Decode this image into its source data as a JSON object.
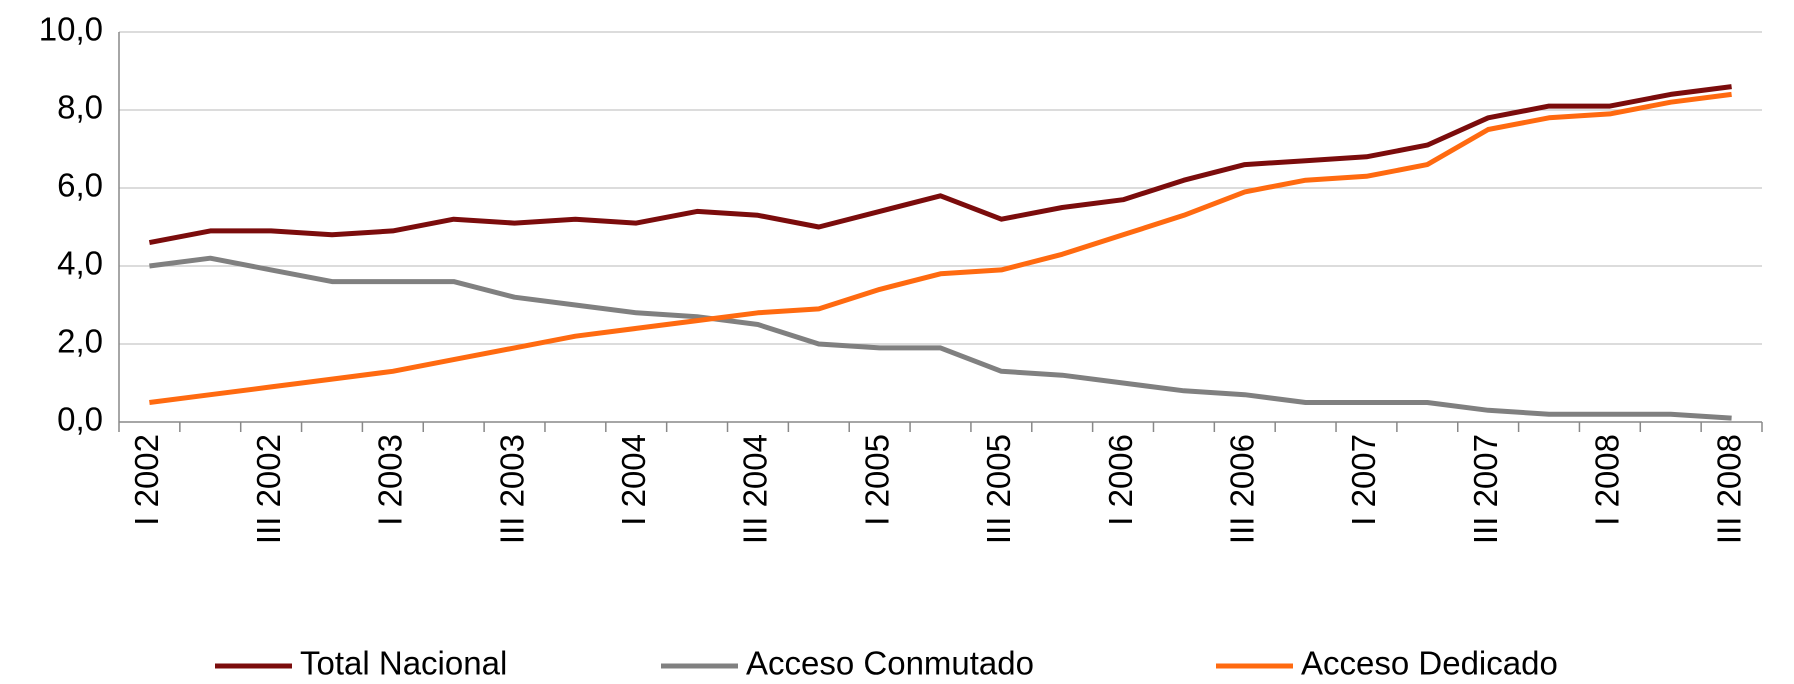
{
  "chart_data": {
    "type": "line",
    "categories": [
      "I 2002",
      null,
      "III 2002",
      null,
      "I 2003",
      null,
      "III 2003",
      null,
      "I 2004",
      null,
      "III 2004",
      null,
      "I 2005",
      null,
      "III 2005",
      null,
      "I 2006",
      null,
      "III 2006",
      null,
      "I 2007",
      null,
      "III 2007",
      null,
      "I 2008",
      null,
      "III 2008"
    ],
    "series": [
      {
        "name": "Total Nacional",
        "color": "#7b0c0c",
        "values": [
          4.6,
          4.9,
          4.9,
          4.8,
          4.9,
          5.2,
          5.1,
          5.2,
          5.1,
          5.4,
          5.3,
          5.0,
          5.4,
          5.8,
          5.2,
          5.5,
          5.7,
          6.2,
          6.6,
          6.7,
          6.8,
          7.1,
          7.8,
          8.1,
          8.1,
          8.4,
          8.6
        ]
      },
      {
        "name": "Acceso Conmutado",
        "color": "#808080",
        "values": [
          4.0,
          4.2,
          3.9,
          3.6,
          3.6,
          3.6,
          3.2,
          3.0,
          2.8,
          2.7,
          2.5,
          2.0,
          1.9,
          1.9,
          1.3,
          1.2,
          1.0,
          0.8,
          0.7,
          0.5,
          0.5,
          0.5,
          0.3,
          0.2,
          0.2,
          0.2,
          0.1
        ]
      },
      {
        "name": "Acceso Dedicado",
        "color": "#ff6a10",
        "values": [
          0.5,
          0.7,
          0.9,
          1.1,
          1.3,
          1.6,
          1.9,
          2.2,
          2.4,
          2.6,
          2.8,
          2.9,
          3.4,
          3.8,
          3.9,
          4.3,
          4.8,
          5.3,
          5.9,
          6.2,
          6.3,
          6.6,
          7.5,
          7.8,
          7.9,
          8.2,
          8.4
        ]
      }
    ],
    "ylim": [
      0,
      10
    ],
    "yticks": [
      {
        "value": 0,
        "label": "0,0"
      },
      {
        "value": 2,
        "label": "2,0"
      },
      {
        "value": 4,
        "label": "4,0"
      },
      {
        "value": 6,
        "label": "6,0"
      },
      {
        "value": 8,
        "label": "8,0"
      },
      {
        "value": 10,
        "label": "10,0"
      }
    ],
    "grid": true,
    "legend": "bottom"
  }
}
